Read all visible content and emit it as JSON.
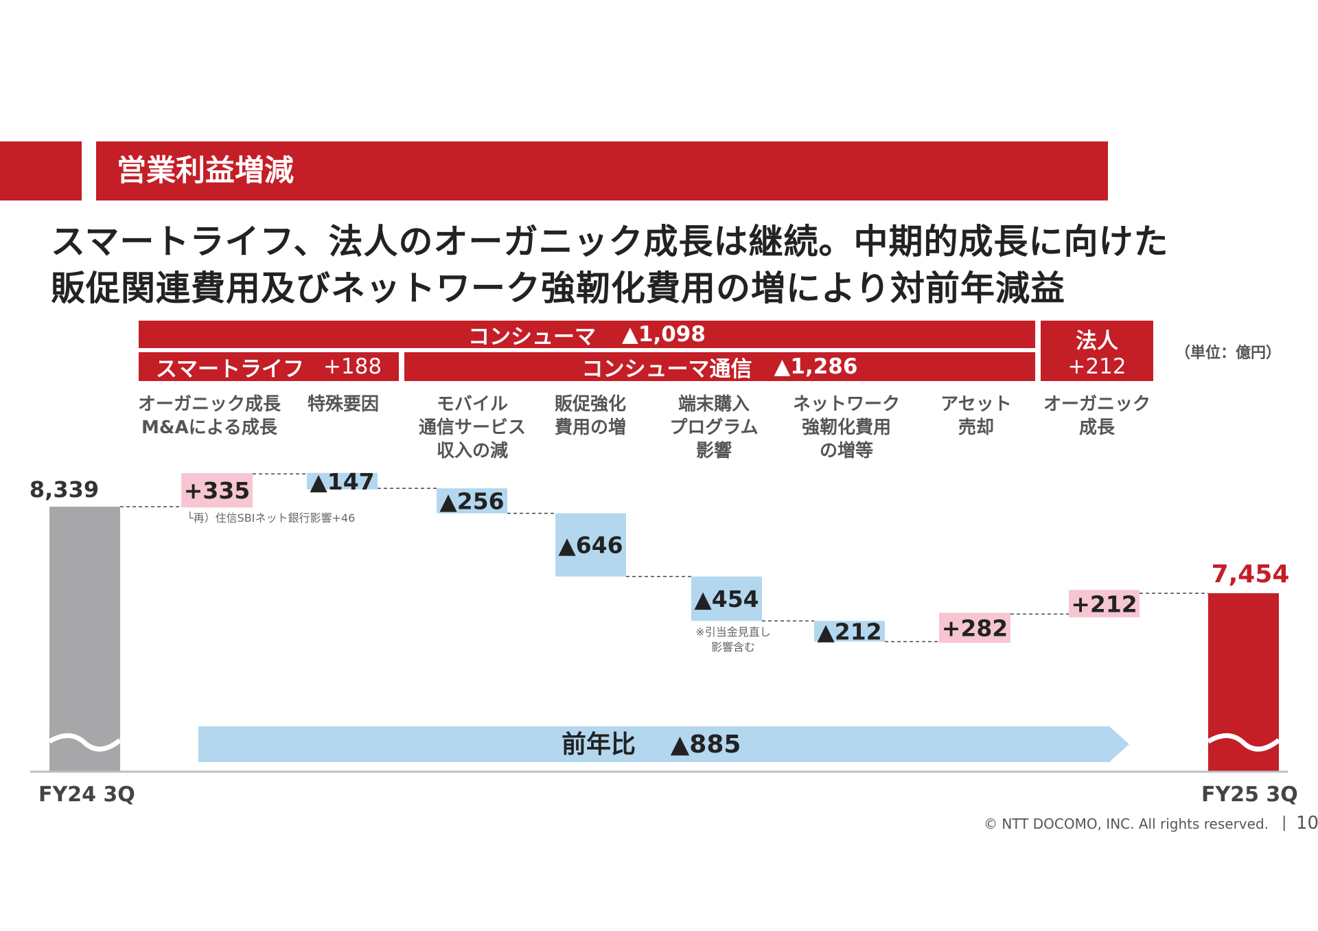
{
  "header": {
    "title": "営業利益増減"
  },
  "headline": {
    "line1": "スマートライフ、法人のオーガニック成長は継続。中期的成長に向けた",
    "line2": "販促関連費用及びネットワーク強靭化費用の増により対前年減益"
  },
  "segments": {
    "consumer": {
      "label": "コンシューマ",
      "value": "▲1,098"
    },
    "smartlife": {
      "label": "スマートライフ",
      "value": "+188"
    },
    "consumer_comm": {
      "label": "コンシューマ通信",
      "value": "▲1,286"
    },
    "corporate": {
      "label": "法人",
      "value": "+212"
    }
  },
  "unit_note": "（単位：億円）",
  "categories": {
    "c1": [
      "オーガニック成長",
      "M&Aによる成長"
    ],
    "c2": [
      "特殊要因"
    ],
    "c3": [
      "モバイル",
      "通信サービス",
      "収入の減"
    ],
    "c4": [
      "販促強化",
      "費用の増"
    ],
    "c5": [
      "端末購入",
      "プログラム",
      "影響"
    ],
    "c6": [
      "ネットワーク",
      "強靭化費用",
      "の増等"
    ],
    "c7": [
      "アセット",
      "売却"
    ],
    "c8": [
      "オーガニック",
      "成長"
    ]
  },
  "notes": {
    "sbi": "└再）住信SBIネット銀行影響+46",
    "device": [
      "※引当金見直し",
      "影響含む"
    ]
  },
  "chart_data": {
    "type": "waterfall",
    "unit": "億円",
    "start": {
      "label": "FY24 3Q",
      "value": 8339,
      "display": "8,339"
    },
    "end": {
      "label": "FY25 3Q",
      "value": 7454,
      "display": "7,454"
    },
    "steps": [
      {
        "key": "organic_ma",
        "value": 335,
        "display": "+335"
      },
      {
        "key": "special",
        "value": -147,
        "display": "▲147"
      },
      {
        "key": "mobile_rev",
        "value": -256,
        "display": "▲256"
      },
      {
        "key": "promo",
        "value": -646,
        "display": "▲646"
      },
      {
        "key": "device_prog",
        "value": -454,
        "display": "▲454"
      },
      {
        "key": "network",
        "value": -212,
        "display": "▲212"
      },
      {
        "key": "asset_sale",
        "value": 282,
        "display": "+282"
      },
      {
        "key": "corp_organic",
        "value": 212,
        "display": "+212"
      }
    ],
    "yoy": {
      "label": "前年比",
      "value": "▲885"
    },
    "colors": {
      "increase": "#f7c6d3",
      "decrease": "#b3d7ef",
      "start": "#a7a7a9",
      "end": "#c41e27",
      "accent": "#c41e27"
    }
  },
  "footer": {
    "copyright": "© NTT DOCOMO, INC.  All rights reserved.",
    "separator": "|",
    "page": "10"
  }
}
